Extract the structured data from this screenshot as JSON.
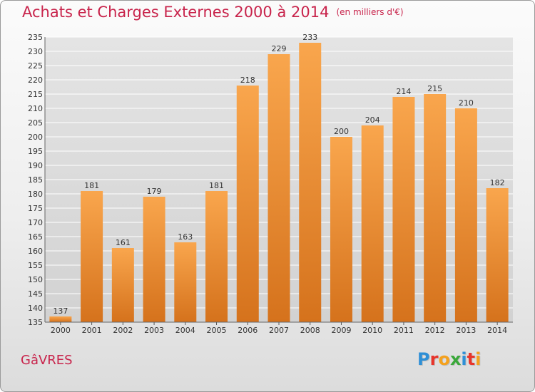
{
  "header": {
    "title": "Achats et Charges Externes 2000 à 2014",
    "unit_note": "(en milliers d'€)"
  },
  "footer": {
    "city": "GâVRES",
    "logo_letters": [
      "P",
      "r",
      "o",
      "x",
      "i",
      "t",
      "i"
    ],
    "logo_colors": [
      "#2e8fd6",
      "#e8342a",
      "#f4a11d",
      "#3aa83a",
      "#2e8fd6",
      "#e8342a",
      "#f4a11d"
    ]
  },
  "colors": {
    "bar_top": "#f9a64d",
    "bar_bottom": "#d5721c",
    "grid": "#ffffff",
    "accent": "#c8234b"
  },
  "chart_data": {
    "type": "bar",
    "title": "Achats et Charges Externes 2000 à 2014",
    "subtitle": "(en milliers d'€)",
    "categories": [
      "2000",
      "2001",
      "2002",
      "2003",
      "2004",
      "2005",
      "2006",
      "2007",
      "2008",
      "2009",
      "2010",
      "2011",
      "2012",
      "2013",
      "2014"
    ],
    "values": [
      137,
      181,
      161,
      179,
      163,
      181,
      218,
      229,
      233,
      200,
      204,
      214,
      215,
      210,
      182
    ],
    "ylim": [
      135,
      235
    ],
    "yticks": [
      135,
      140,
      145,
      150,
      155,
      160,
      165,
      170,
      175,
      180,
      185,
      190,
      195,
      200,
      205,
      210,
      215,
      220,
      225,
      230,
      235
    ],
    "grid": true,
    "data_labels": true,
    "legend": "none"
  }
}
